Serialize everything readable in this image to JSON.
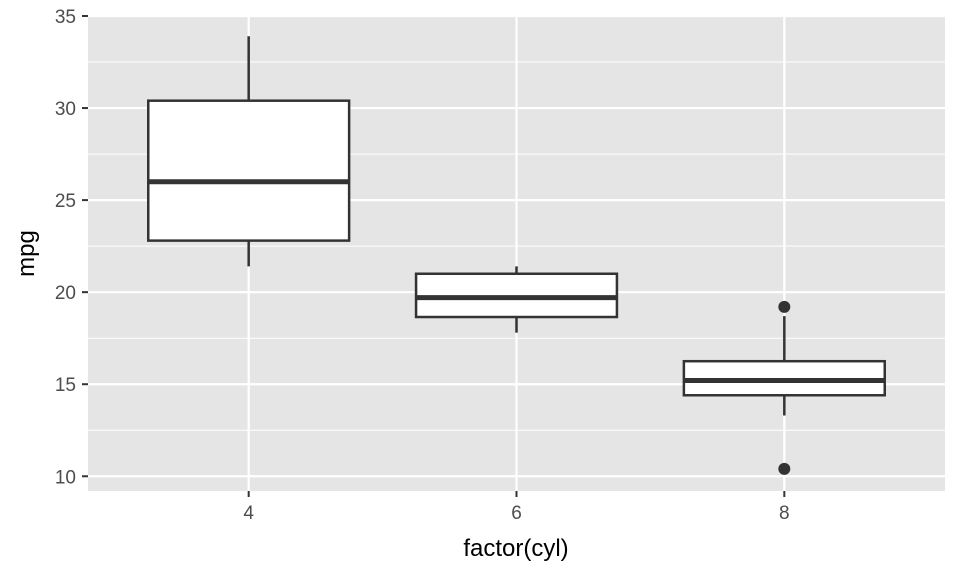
{
  "chart_data": {
    "type": "boxplot",
    "xlabel": "factor(cyl)",
    "ylabel": "mpg",
    "categories": [
      "4",
      "6",
      "8"
    ],
    "ylim": [
      9.2,
      35.0
    ],
    "y_ticks": [
      10,
      15,
      20,
      25,
      30,
      35
    ],
    "y_tick_labels": [
      "10",
      "15",
      "20",
      "25",
      "30",
      "35"
    ],
    "grid": true,
    "legend": "none",
    "boxes": [
      {
        "category": "4",
        "lower_whisker": 21.4,
        "q1": 22.8,
        "median": 26.0,
        "q3": 30.4,
        "upper_whisker": 33.9,
        "outliers": []
      },
      {
        "category": "6",
        "lower_whisker": 17.8,
        "q1": 18.65,
        "median": 19.7,
        "q3": 21.0,
        "upper_whisker": 21.4,
        "outliers": []
      },
      {
        "category": "8",
        "lower_whisker": 13.3,
        "q1": 14.4,
        "median": 15.2,
        "q3": 16.25,
        "upper_whisker": 18.7,
        "outliers": [
          19.2,
          10.4
        ]
      }
    ],
    "colors": {
      "panel_background": "#e5e5e5",
      "grid_line": "#ffffff",
      "box_fill": "#ffffff",
      "box_stroke": "#333333",
      "tick_text": "#4d4d4d",
      "title_text": "#000000"
    }
  }
}
